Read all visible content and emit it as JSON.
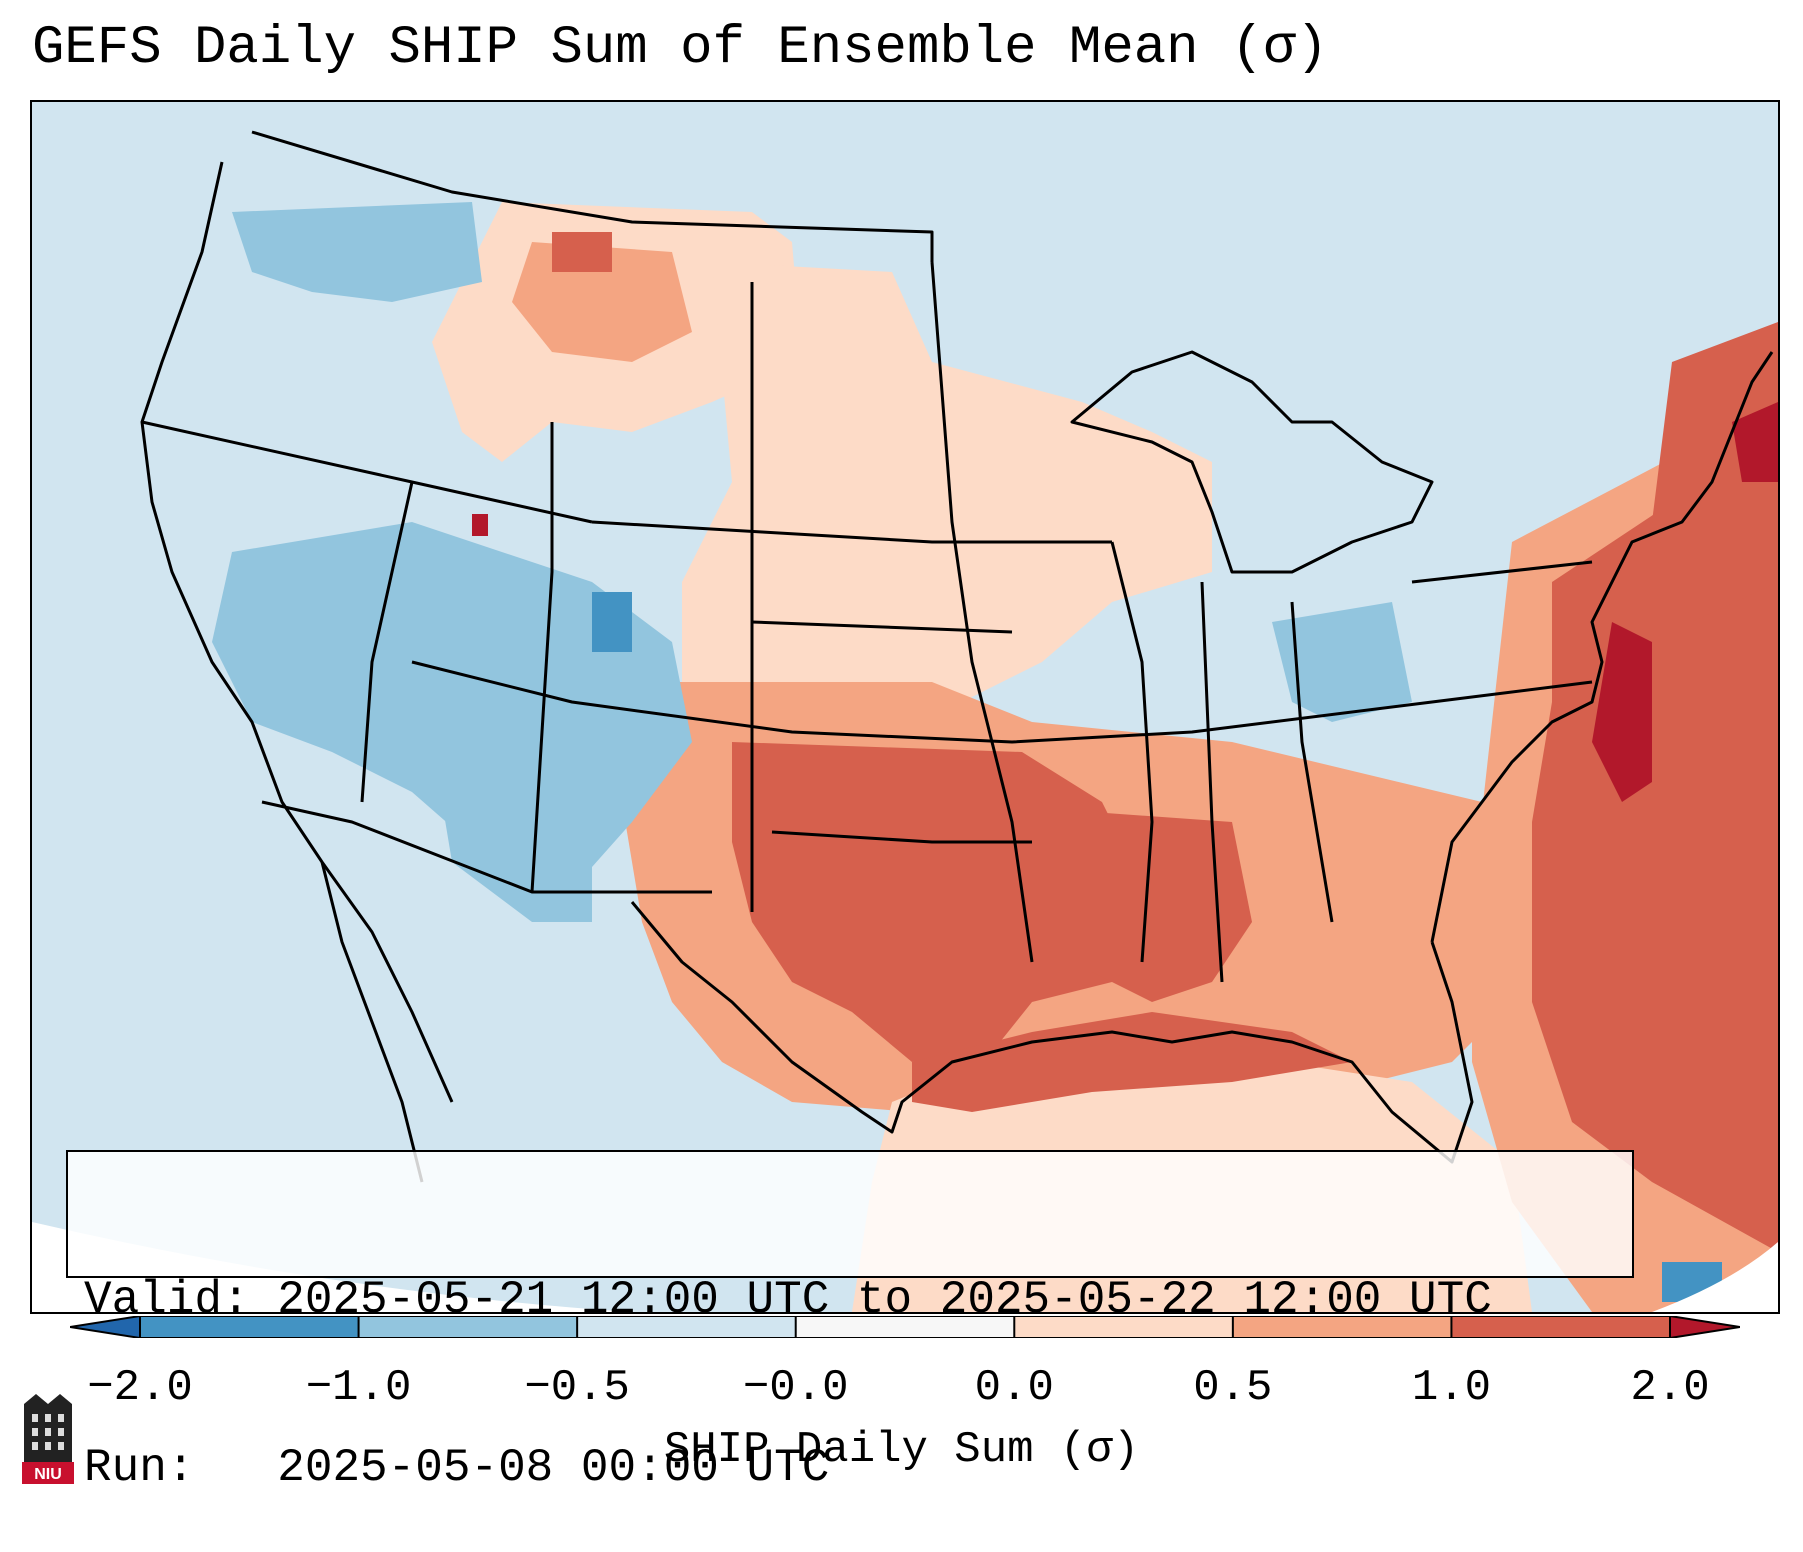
{
  "title": "GEFS Daily SHIP Sum of Ensemble Mean (σ)",
  "info": {
    "valid_line": "Valid: 2025-05-21 12:00 UTC to 2025-05-22 12:00 UTC",
    "run_line": "Run:   2025-05-08 00:00 UTC"
  },
  "colorbar": {
    "label": "SHIP Daily Sum (σ)",
    "ticks": [
      "−2.0",
      "−1.0",
      "−0.5",
      "−0.0",
      "0.0",
      "0.5",
      "1.0",
      "2.0"
    ],
    "colors": [
      "#4393c3",
      "#92c5de",
      "#d1e5f0",
      "#f7f7f7",
      "#fddbc7",
      "#f4a582",
      "#d6604d"
    ],
    "under_color": "#2166ac",
    "over_color": "#b2182b"
  },
  "map": {
    "projection": "lambert-conformal-conus",
    "background_value_color": "#d1e5f0",
    "border_color": "#000000",
    "regions": [
      {
        "name": "southern-plains-south",
        "level": "1.0"
      },
      {
        "name": "gulf-coast",
        "level": "1.0"
      },
      {
        "name": "western-atlantic",
        "level": "1.0"
      },
      {
        "name": "mid-atlantic-coast",
        "level": "2.0"
      },
      {
        "name": "gulf-of-mexico",
        "level": "0.0"
      },
      {
        "name": "northern-rockies",
        "level": "0.5"
      },
      {
        "name": "great-basin",
        "level": "-0.5"
      },
      {
        "name": "southwest",
        "level": "-0.5"
      }
    ]
  },
  "logo": {
    "text": "NIU"
  }
}
